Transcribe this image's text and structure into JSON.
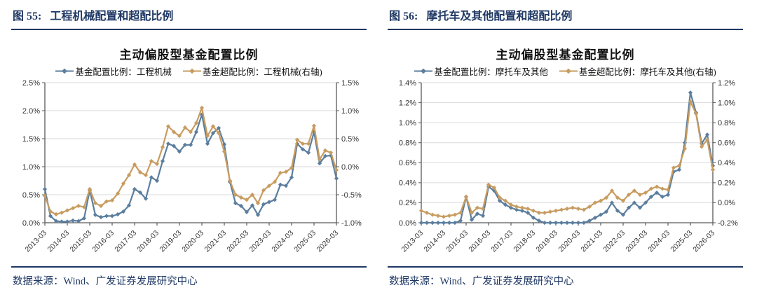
{
  "colors": {
    "navy": "#1F3864",
    "axis_line": "#595959",
    "grid_line": "#DADADA",
    "tick_text": "#333333",
    "series_blue": "#5B7E9E",
    "series_gold": "#C89C60"
  },
  "panels": [
    {
      "header": {
        "label": "图 55:",
        "title": "工程机械配置和超配比例"
      },
      "chart_title": "主动偏股型基金配置比例",
      "source": "数据来源：Wind、广发证券发展研究中心",
      "chart_data": {
        "type": "line",
        "title": "主动偏股型基金配置比例",
        "x_frequency": "quarterly",
        "x_tick_labels": [
          "2013-03",
          "2014-03",
          "2015-03",
          "2016-03",
          "2017-03",
          "2018-03",
          "2019-03",
          "2020-03",
          "2021-03",
          "2022-03",
          "2023-03",
          "2024-03",
          "2025-03",
          "2026-03"
        ],
        "left_axis": {
          "min": 0,
          "max": 2.5,
          "step": 0.5,
          "unit": "%"
        },
        "right_axis": {
          "min": -1.0,
          "max": 1.5,
          "step": 0.5,
          "unit": "%"
        },
        "grid": true,
        "legend_position": "top",
        "series": [
          {
            "name": "基金配置比例：工程机械",
            "axis": "left",
            "color": "#5B7E9E",
            "marker": "diamond",
            "values": [
              0.6,
              0.12,
              0.03,
              0.02,
              0.02,
              0.04,
              0.03,
              0.08,
              0.58,
              0.14,
              0.1,
              0.12,
              0.12,
              0.15,
              0.2,
              0.31,
              0.6,
              0.54,
              0.43,
              0.81,
              0.75,
              1.1,
              1.41,
              1.37,
              1.27,
              1.39,
              1.39,
              1.62,
              1.93,
              1.41,
              1.6,
              1.69,
              1.4,
              0.73,
              0.35,
              0.3,
              0.19,
              0.31,
              0.14,
              0.33,
              0.37,
              0.41,
              0.68,
              0.66,
              0.81,
              1.41,
              1.31,
              1.25,
              1.62,
              1.06,
              1.19,
              1.2,
              0.79
            ]
          },
          {
            "name": "基金超配比例：工程机械(右轴)",
            "axis": "right",
            "color": "#C89C60",
            "marker": "diamond",
            "values": [
              -0.52,
              -0.8,
              -0.85,
              -0.82,
              -0.78,
              -0.74,
              -0.7,
              -0.72,
              -0.4,
              -0.65,
              -0.7,
              -0.62,
              -0.6,
              -0.48,
              -0.3,
              -0.15,
              0.04,
              -0.1,
              -0.15,
              0.1,
              0.05,
              0.35,
              0.72,
              0.62,
              0.55,
              0.7,
              0.62,
              0.78,
              1.05,
              0.55,
              0.72,
              0.6,
              0.27,
              -0.25,
              -0.5,
              -0.55,
              -0.59,
              -0.5,
              -0.65,
              -0.42,
              -0.34,
              -0.27,
              -0.11,
              -0.09,
              -0.02,
              0.48,
              0.41,
              0.41,
              0.73,
              0.13,
              0.29,
              0.25,
              -0.06
            ]
          }
        ]
      }
    },
    {
      "header": {
        "label": "图 56:",
        "title": "摩托车及其他配置和超配比例"
      },
      "chart_title": "主动偏股型基金配置比例",
      "source": "数据来源：Wind、广发证券发展研究中心",
      "chart_data": {
        "type": "line",
        "title": "主动偏股型基金配置比例",
        "x_frequency": "quarterly",
        "x_tick_labels": [
          "2013-03",
          "2014-03",
          "2015-03",
          "2016-03",
          "2017-03",
          "2018-03",
          "2019-03",
          "2020-03",
          "2021-03",
          "2022-03",
          "2023-03",
          "2024-03",
          "2025-03",
          "2026-03"
        ],
        "left_axis": {
          "min": 0,
          "max": 1.4,
          "step": 0.2,
          "unit": "%"
        },
        "right_axis": {
          "min": -0.2,
          "max": 1.2,
          "step": 0.2,
          "unit": "%"
        },
        "grid": true,
        "legend_position": "top",
        "series": [
          {
            "name": "基金配置比例：摩托车及其他",
            "axis": "left",
            "color": "#5B7E9E",
            "marker": "diamond",
            "values": [
              0.0,
              0.0,
              0.0,
              0.0,
              0.0,
              0.0,
              0.0,
              0.02,
              0.26,
              0.03,
              0.09,
              0.07,
              0.36,
              0.32,
              0.22,
              0.18,
              0.15,
              0.13,
              0.12,
              0.1,
              0.05,
              0.02,
              0.0,
              0.0,
              0.0,
              0.0,
              0.0,
              0.0,
              0.0,
              0.0,
              0.02,
              0.05,
              0.08,
              0.11,
              0.2,
              0.12,
              0.08,
              0.15,
              0.2,
              0.15,
              0.2,
              0.26,
              0.3,
              0.26,
              0.28,
              0.51,
              0.53,
              0.8,
              1.3,
              1.1,
              0.79,
              0.88,
              0.57
            ]
          },
          {
            "name": "基金超配比例：摩托车及其他(右轴)",
            "axis": "right",
            "color": "#C89C60",
            "marker": "diamond",
            "values": [
              -0.08,
              -0.1,
              -0.12,
              -0.13,
              -0.14,
              -0.13,
              -0.12,
              -0.1,
              0.06,
              -0.1,
              -0.05,
              -0.06,
              0.18,
              0.15,
              0.05,
              0.02,
              -0.02,
              -0.04,
              -0.05,
              -0.06,
              -0.08,
              -0.1,
              -0.1,
              -0.09,
              -0.08,
              -0.07,
              -0.06,
              -0.05,
              -0.06,
              -0.07,
              -0.04,
              0.0,
              0.02,
              0.05,
              0.12,
              0.05,
              0.02,
              0.08,
              0.12,
              0.08,
              0.1,
              0.14,
              0.16,
              0.14,
              0.13,
              0.35,
              0.37,
              0.54,
              1.01,
              0.89,
              0.56,
              0.63,
              0.33
            ]
          }
        ]
      }
    }
  ]
}
